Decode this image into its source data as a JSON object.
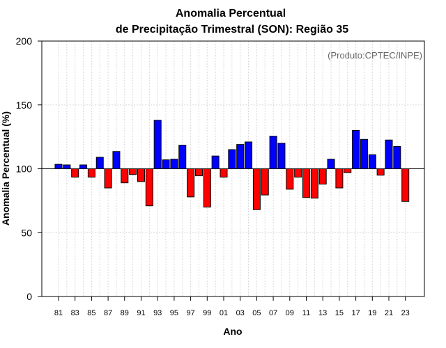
{
  "chart_data": {
    "type": "bar",
    "title_line1": "Anomalia Percentual",
    "title_line2": "de Precipitação Trimestral (SON): Região 35",
    "xlabel": "Ano",
    "ylabel": "Anomalia Percentual (%)",
    "credit": "(Produto:CPTEC/INPE)",
    "baseline": 100,
    "ylim": [
      0,
      200
    ],
    "yticks": [
      0,
      50,
      100,
      150,
      200
    ],
    "grid": true,
    "colors": {
      "above": "#0000ff",
      "below": "#ff0000",
      "frame": "#000000",
      "grid": "#d9d9d9"
    },
    "categories": [
      1981,
      1982,
      1983,
      1984,
      1985,
      1986,
      1987,
      1988,
      1989,
      1990,
      1991,
      1992,
      1993,
      1994,
      1995,
      1996,
      1997,
      1998,
      1999,
      2000,
      2001,
      2002,
      2003,
      2004,
      2005,
      2006,
      2007,
      2008,
      2009,
      2010,
      2011,
      2012,
      2013,
      2014,
      2015,
      2016,
      2017,
      2018,
      2019,
      2020,
      2021,
      2022,
      2023
    ],
    "tick_labels": [
      "81",
      "83",
      "85",
      "87",
      "89",
      "91",
      "93",
      "95",
      "97",
      "99",
      "01",
      "03",
      "05",
      "07",
      "09",
      "11",
      "13",
      "15",
      "17",
      "19",
      "21",
      "23"
    ],
    "values": [
      103.5,
      103,
      93.5,
      103,
      93.5,
      109,
      85,
      113.5,
      89,
      95.5,
      90,
      71,
      138,
      107,
      107.5,
      118.5,
      78,
      94.5,
      70,
      110,
      93.5,
      115,
      119,
      121,
      68,
      79.5,
      125.5,
      120,
      84,
      93.5,
      77.5,
      77,
      88,
      107.5,
      85,
      97,
      130,
      123,
      111,
      95,
      122.5,
      117.5,
      74.5
    ]
  }
}
